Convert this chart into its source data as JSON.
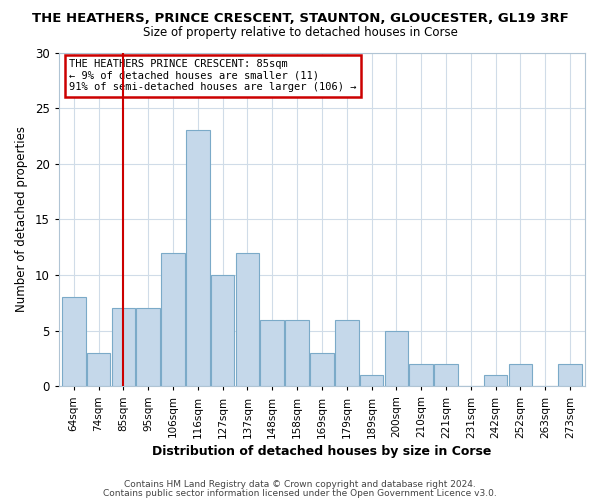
{
  "title": "THE HEATHERS, PRINCE CRESCENT, STAUNTON, GLOUCESTER, GL19 3RF",
  "subtitle": "Size of property relative to detached houses in Corse",
  "xlabel": "Distribution of detached houses by size in Corse",
  "ylabel": "Number of detached properties",
  "bar_color": "#c5d8ea",
  "bar_edge_color": "#7baac8",
  "bins": [
    "64sqm",
    "74sqm",
    "85sqm",
    "95sqm",
    "106sqm",
    "116sqm",
    "127sqm",
    "137sqm",
    "148sqm",
    "158sqm",
    "169sqm",
    "179sqm",
    "189sqm",
    "200sqm",
    "210sqm",
    "221sqm",
    "231sqm",
    "242sqm",
    "252sqm",
    "263sqm",
    "273sqm"
  ],
  "values": [
    8,
    3,
    7,
    7,
    12,
    23,
    10,
    12,
    6,
    6,
    3,
    6,
    1,
    5,
    2,
    2,
    0,
    1,
    2,
    0,
    2
  ],
  "ylim": [
    0,
    30
  ],
  "yticks": [
    0,
    5,
    10,
    15,
    20,
    25,
    30
  ],
  "vline_x_index": 2,
  "vline_color": "#cc0000",
  "annotation_line1": "THE HEATHERS PRINCE CRESCENT: 85sqm",
  "annotation_line2": "← 9% of detached houses are smaller (11)",
  "annotation_line3": "91% of semi-detached houses are larger (106) →",
  "annotation_box_color": "#ffffff",
  "annotation_box_edge": "#cc0000",
  "footer1": "Contains HM Land Registry data © Crown copyright and database right 2024.",
  "footer2": "Contains public sector information licensed under the Open Government Licence v3.0.",
  "background_color": "#ffffff",
  "plot_bg_color": "#ffffff",
  "grid_color": "#d0dce8",
  "title_fontsize": 9.5,
  "subtitle_fontsize": 8.5
}
